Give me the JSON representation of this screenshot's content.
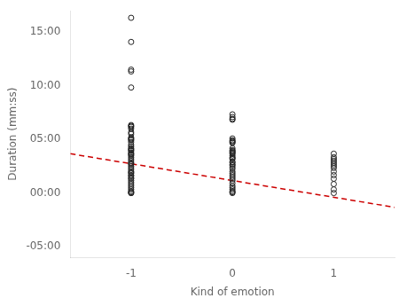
{
  "chart_data": {
    "type": "scatter",
    "xlabel": "Kind of emotion",
    "ylabel": "Duration (mm:ss)",
    "xlim": [
      -1.6,
      1.6
    ],
    "xticks": [
      -1,
      0,
      1
    ],
    "ylim": [
      -360,
      1020
    ],
    "yticks": [
      {
        "value": -300,
        "label": "-05:00"
      },
      {
        "value": 0,
        "label": "00:00"
      },
      {
        "value": 300,
        "label": "05:00"
      },
      {
        "value": 600,
        "label": "10:00"
      },
      {
        "value": 900,
        "label": "15:00"
      }
    ],
    "grid": false,
    "series": [
      {
        "type": "scatter",
        "color": "#222222",
        "marker": "circle",
        "x": [
          -1,
          -1,
          -1,
          -1,
          -1,
          -1,
          -1,
          -1,
          -1,
          -1,
          -1,
          -1,
          -1,
          -1,
          -1,
          -1,
          -1,
          -1,
          -1,
          -1,
          -1,
          -1,
          -1,
          -1,
          -1,
          -1,
          -1,
          -1,
          -1,
          -1,
          -1,
          -1,
          -1,
          -1,
          -1,
          -1,
          -1,
          -1,
          -1,
          -1,
          -1,
          -1,
          -1,
          -1,
          -1,
          -1,
          -1,
          -1,
          -1,
          -1,
          -1,
          -1,
          0,
          0,
          0,
          0,
          0,
          0,
          0,
          0,
          0,
          0,
          0,
          0,
          0,
          0,
          0,
          0,
          0,
          0,
          0,
          0,
          0,
          0,
          0,
          0,
          0,
          0,
          0,
          0,
          0,
          0,
          0,
          0,
          0,
          0,
          0,
          0,
          0,
          0,
          1,
          1,
          1,
          1,
          1,
          1,
          1,
          1,
          1,
          1,
          1,
          1,
          1,
          1
        ],
        "values": [
          980,
          845,
          690,
          680,
          590,
          380,
          375,
          370,
          360,
          340,
          330,
          310,
          305,
          300,
          295,
          285,
          270,
          260,
          250,
          245,
          240,
          235,
          225,
          220,
          215,
          210,
          200,
          190,
          180,
          170,
          165,
          160,
          150,
          140,
          130,
          120,
          115,
          110,
          100,
          95,
          85,
          80,
          70,
          60,
          50,
          40,
          30,
          20,
          10,
          5,
          0,
          0,
          440,
          425,
          305,
          295,
          250,
          240,
          235,
          230,
          225,
          220,
          210,
          200,
          195,
          190,
          175,
          170,
          160,
          155,
          145,
          135,
          120,
          110,
          100,
          90,
          80,
          70,
          55,
          40,
          30,
          20,
          10,
          5,
          0,
          415,
          410,
          290,
          285,
          280,
          220,
          200,
          190,
          180,
          170,
          160,
          150,
          140,
          120,
          100,
          80,
          50,
          20,
          0
        ]
      },
      {
        "type": "line",
        "color": "#cc0000",
        "line_style": "dashed",
        "x": [
          -1.6,
          1.6
        ],
        "values": [
          220,
          -80
        ]
      }
    ]
  }
}
